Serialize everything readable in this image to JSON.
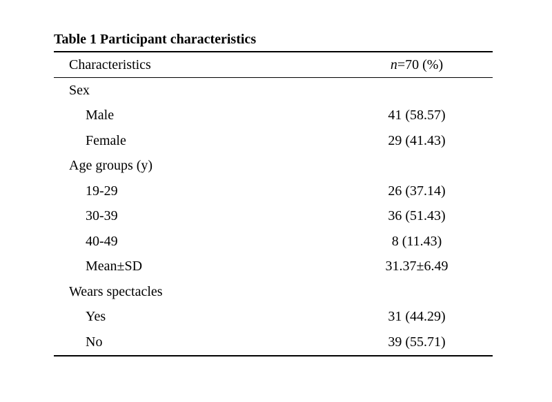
{
  "table": {
    "title": "Table 1 Participant characteristics",
    "header": {
      "characteristics": "Characteristics",
      "n_italic": "n",
      "n_rest": "=70 (%)"
    },
    "rows": [
      {
        "label": "Sex",
        "value": "",
        "indent": false
      },
      {
        "label": "Male",
        "value": "41 (58.57)",
        "indent": true
      },
      {
        "label": "Female",
        "value": "29 (41.43)",
        "indent": true
      },
      {
        "label": "Age groups (y)",
        "value": "",
        "indent": false
      },
      {
        "label": "19-29",
        "value": "26 (37.14)",
        "indent": true
      },
      {
        "label": "30-39",
        "value": "36 (51.43)",
        "indent": true
      },
      {
        "label": "40-49",
        "value": "8 (11.43)",
        "indent": true
      },
      {
        "label": "Mean±SD",
        "value": "31.37±6.49",
        "indent": true
      },
      {
        "label": "Wears spectacles",
        "value": "",
        "indent": false
      },
      {
        "label": "Yes",
        "value": "31 (44.29)",
        "indent": true
      },
      {
        "label": "No",
        "value": "39 (55.71)",
        "indent": true
      }
    ]
  }
}
